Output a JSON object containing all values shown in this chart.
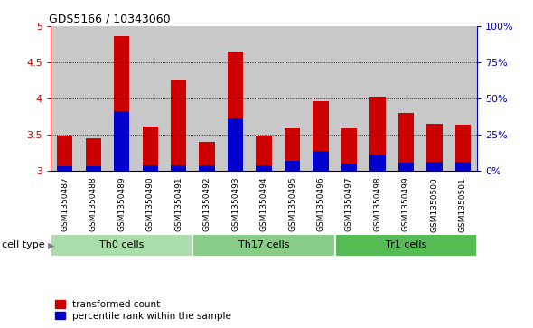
{
  "title": "GDS5166 / 10343060",
  "samples": [
    "GSM1350487",
    "GSM1350488",
    "GSM1350489",
    "GSM1350490",
    "GSM1350491",
    "GSM1350492",
    "GSM1350493",
    "GSM1350494",
    "GSM1350495",
    "GSM1350496",
    "GSM1350497",
    "GSM1350498",
    "GSM1350499",
    "GSM1350500",
    "GSM1350501"
  ],
  "red_values": [
    3.48,
    3.45,
    4.86,
    3.61,
    4.26,
    3.4,
    4.65,
    3.49,
    3.59,
    3.96,
    3.59,
    4.02,
    3.8,
    3.65,
    3.64
  ],
  "blue_values": [
    3.06,
    3.06,
    3.82,
    3.07,
    3.07,
    3.07,
    3.72,
    3.07,
    3.13,
    3.27,
    3.1,
    3.22,
    3.11,
    3.12,
    3.12
  ],
  "cell_groups": [
    {
      "label": "Th0 cells",
      "start": 0,
      "end": 5,
      "color": "#aaddaa"
    },
    {
      "label": "Th17 cells",
      "start": 5,
      "end": 10,
      "color": "#88cc88"
    },
    {
      "label": "Tr1 cells",
      "start": 10,
      "end": 15,
      "color": "#55bb55"
    }
  ],
  "ylim_left": [
    3.0,
    5.0
  ],
  "ylim_right": [
    0,
    100
  ],
  "yticks_left": [
    3.0,
    3.5,
    4.0,
    4.5,
    5.0
  ],
  "ytick_labels_left": [
    "3",
    "3.5",
    "4",
    "4.5",
    "5"
  ],
  "yticks_right": [
    0,
    25,
    50,
    75,
    100
  ],
  "ytick_labels_right": [
    "0%",
    "25%",
    "50%",
    "75%",
    "100%"
  ],
  "bar_color_red": "#cc0000",
  "bar_color_blue": "#0000cc",
  "bar_width": 0.55,
  "legend_red": "transformed count",
  "legend_blue": "percentile rank within the sample",
  "cell_type_label": "cell type",
  "left_tick_color": "#cc0000",
  "right_tick_color": "#0000cc",
  "gridline_y": [
    3.5,
    4.0,
    4.5
  ],
  "xlabel_gray": "#c8c8c8"
}
